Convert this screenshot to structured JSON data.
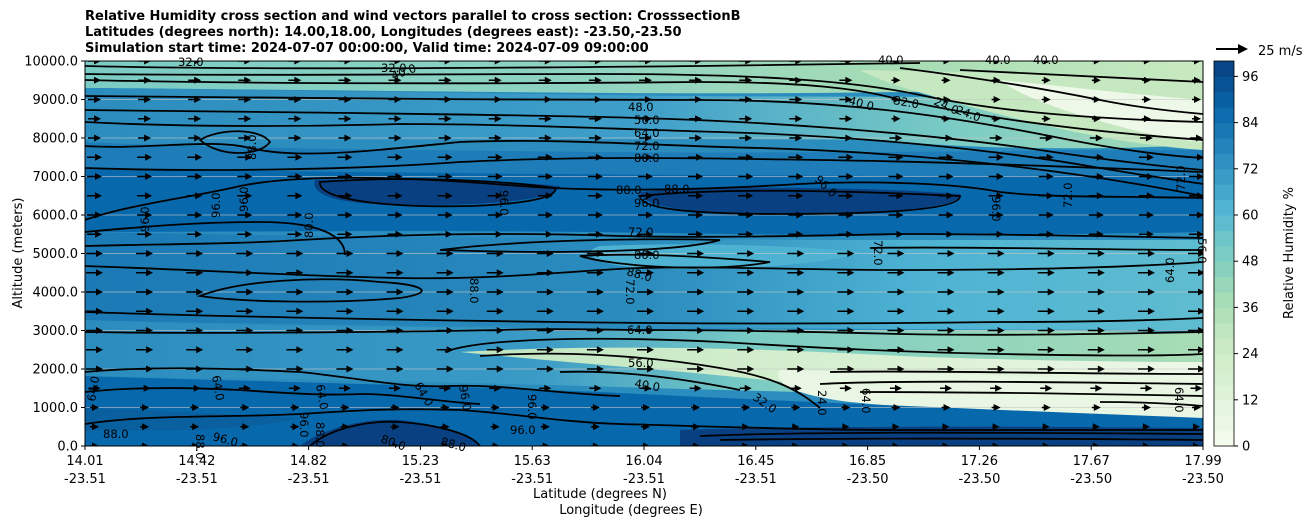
{
  "chart_data": {
    "type": "contour",
    "title_lines": [
      "Relative Humidity cross section and wind vectors parallel to cross section: CrosssectionB",
      "Latitudes (degrees north): 14.00,18.00, Longitudes (degrees east): -23.50,-23.50",
      "Simulation start time: 2024-07-07 00:00:00, Valid time: 2024-07-09 09:00:00"
    ],
    "ylabel": "Altitude (meters)",
    "xlabel_lines": [
      "Latitude (degrees N)",
      "Longitude (degrees E)"
    ],
    "ylim": [
      0,
      10000
    ],
    "y_ticks": [
      "0.0",
      "1000.0",
      "2000.0",
      "3000.0",
      "4000.0",
      "5000.0",
      "6000.0",
      "7000.0",
      "8000.0",
      "9000.0",
      "10000.0"
    ],
    "x_ticks": [
      {
        "lat": "14.01",
        "lon": "-23.51"
      },
      {
        "lat": "14.42",
        "lon": "-23.51"
      },
      {
        "lat": "14.82",
        "lon": "-23.51"
      },
      {
        "lat": "15.23",
        "lon": "-23.51"
      },
      {
        "lat": "15.63",
        "lon": "-23.51"
      },
      {
        "lat": "16.04",
        "lon": "-23.51"
      },
      {
        "lat": "16.45",
        "lon": "-23.51"
      },
      {
        "lat": "16.85",
        "lon": "-23.50"
      },
      {
        "lat": "17.26",
        "lon": "-23.50"
      },
      {
        "lat": "17.67",
        "lon": "-23.50"
      },
      {
        "lat": "17.99",
        "lon": "-23.50"
      }
    ],
    "colorbar": {
      "label": "Relative Humidity %",
      "range": [
        0,
        100
      ],
      "ticks": [
        "0",
        "12",
        "24",
        "36",
        "48",
        "60",
        "72",
        "84",
        "96"
      ],
      "levels": [
        0,
        4,
        8,
        12,
        16,
        20,
        24,
        28,
        32,
        36,
        40,
        44,
        48,
        52,
        56,
        60,
        64,
        68,
        72,
        76,
        80,
        84,
        88,
        92,
        96,
        100
      ]
    },
    "contour_levels": [
      24,
      32,
      40,
      48,
      56,
      64,
      72,
      80,
      88,
      96
    ],
    "contour_labels": [
      "32.0",
      "40.0",
      "32.0",
      "40.0",
      "40.0",
      "40.0",
      "40.0",
      "32.0",
      "24.0",
      "24.0",
      "48.0",
      "56.0",
      "64.0",
      "72.0",
      "80.0",
      "88.0",
      "88.0",
      "96.0",
      "96.0",
      "96.0",
      "96.0",
      "96.0",
      "96.0",
      "96.0",
      "72.0",
      "72.0",
      "88.0",
      "80.0",
      "72.0",
      "80.0",
      "88.0",
      "88.0",
      "72.0",
      "72.0",
      "64.0",
      "56.0",
      "64.0",
      "56.0",
      "40.0",
      "32.0",
      "24.0",
      "64.0",
      "64.0",
      "64.0",
      "64.0",
      "64.0",
      "64.0",
      "96.0",
      "96.0",
      "88.0",
      "88.0",
      "96.0",
      "96.0",
      "88.0",
      "80.0",
      "88.0",
      "96.0"
    ],
    "wind_reference": {
      "value": 25,
      "units": "m/s",
      "label": "25 m/s"
    },
    "series": [
      {
        "name": "Relative Humidity %",
        "type": "filled-contour",
        "range": [
          0,
          100
        ]
      },
      {
        "name": "Relative Humidity contours",
        "type": "contour",
        "levels": [
          24,
          32,
          40,
          48,
          56,
          64,
          72,
          80,
          88,
          96
        ]
      },
      {
        "name": "Wind vectors parallel to cross section",
        "type": "quiver",
        "direction": "northward"
      }
    ]
  },
  "colors": {
    "rh_scale": [
      "#f7fcf0",
      "#e0f3db",
      "#ccebc5",
      "#a8ddb5",
      "#7bccc4",
      "#4eb3d3",
      "#2b8cbe",
      "#0868ac",
      "#084081"
    ],
    "contour": "#000000",
    "gridline": "#c8c8c8"
  }
}
